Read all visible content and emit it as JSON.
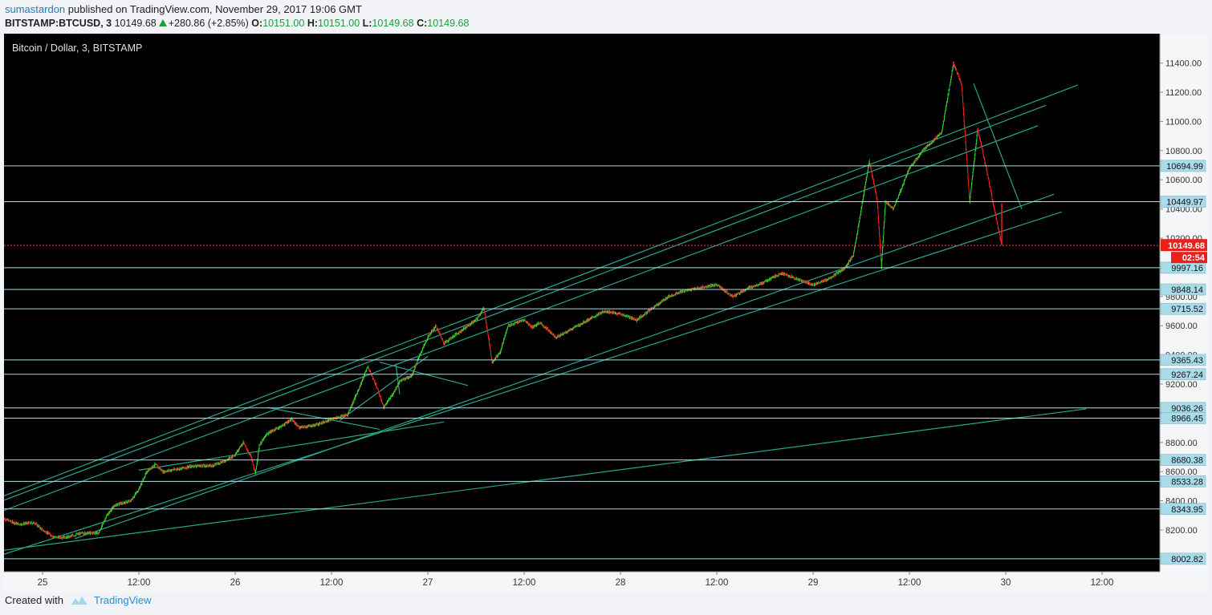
{
  "header": {
    "user": "sumastardon",
    "published": "published on TradingView.com, November 29, 2017 19:06 GMT",
    "symbol": "BITSTAMP:BTCUSD, 3",
    "last": "10149.68",
    "change": "+280.86 (+2.85%)",
    "o_label": "O:",
    "o_value": "10151.00",
    "h_label": "H:",
    "h_value": "10151.00",
    "l_label": "L:",
    "l_value": "10149.68",
    "c_label": "C:",
    "c_value": "10149.68"
  },
  "footer": {
    "created_with": "Created with",
    "brand": "TradingView"
  },
  "chart_data": {
    "type": "candlestick",
    "title": "Bitcoin / Dollar, 3, BITSTAMP",
    "colors": {
      "background": "#000000",
      "up": "#2ecc2e",
      "down": "#e8211a",
      "hline": "#b4dbe6",
      "trendline": "#2aa58a",
      "price_line": "#ff3b30",
      "label_bg": "#a8dcea"
    },
    "y_ticks": [
      8200,
      8400,
      8600,
      8800,
      9000,
      9200,
      9400,
      9600,
      9800,
      10000,
      10200,
      10400,
      10600,
      10800,
      11000,
      11200,
      11400
    ],
    "y_tick_labels": [
      "8200.00",
      "8400.00",
      "8600.00",
      "8800.00",
      "9000.00",
      "9200.00",
      "9400.00",
      "9600.00",
      "9800.00",
      "10000.00",
      "10200.00",
      "10400.00",
      "10600.00",
      "10800.00",
      "11000.00",
      "11200.00",
      "11400.00"
    ],
    "x_ticks": [
      {
        "label": "25",
        "hour": 0
      },
      {
        "label": "12:00",
        "hour": 12
      },
      {
        "label": "26",
        "hour": 24
      },
      {
        "label": "12:00",
        "hour": 36
      },
      {
        "label": "27",
        "hour": 48
      },
      {
        "label": "12:00",
        "hour": 60
      },
      {
        "label": "28",
        "hour": 72
      },
      {
        "label": "12:00",
        "hour": 84
      },
      {
        "label": "29",
        "hour": 96
      },
      {
        "label": "12:00",
        "hour": 108
      },
      {
        "label": "30",
        "hour": 120
      },
      {
        "label": "12:00",
        "hour": 132
      }
    ],
    "horizontal_levels": [
      10694.99,
      10449.97,
      9997.16,
      9848.14,
      9715.52,
      9365.43,
      9267.24,
      9036.26,
      8966.45,
      8680.38,
      8533.28,
      8343.95,
      8002.82
    ],
    "level_labels": [
      "10694.99",
      "10449.97",
      "9997.16",
      "9848.14",
      "9715.52",
      "9365.43",
      "9267.24",
      "9036.26",
      "8966.45",
      "8680.38",
      "8533.28",
      "8343.95",
      "8002.82"
    ],
    "current_price": 10149.68,
    "current_price_label": "10149.68",
    "countdown": "02:54",
    "price_path": [
      [
        -5,
        8280
      ],
      [
        -3,
        8240
      ],
      [
        -1,
        8250
      ],
      [
        0,
        8200
      ],
      [
        1.5,
        8150
      ],
      [
        3,
        8150
      ],
      [
        5,
        8180
      ],
      [
        7,
        8180
      ],
      [
        8,
        8300
      ],
      [
        9,
        8370
      ],
      [
        11,
        8400
      ],
      [
        12,
        8480
      ],
      [
        13,
        8600
      ],
      [
        14,
        8650
      ],
      [
        15,
        8600
      ],
      [
        17,
        8620
      ],
      [
        19,
        8640
      ],
      [
        21,
        8640
      ],
      [
        23,
        8680
      ],
      [
        24,
        8720
      ],
      [
        25,
        8800
      ],
      [
        26,
        8700
      ],
      [
        26.5,
        8580
      ],
      [
        27,
        8780
      ],
      [
        28,
        8860
      ],
      [
        30,
        8920
      ],
      [
        31,
        8960
      ],
      [
        32,
        8900
      ],
      [
        34,
        8920
      ],
      [
        36,
        8960
      ],
      [
        38,
        8990
      ],
      [
        39.5,
        9180
      ],
      [
        40.5,
        9320
      ],
      [
        41.5,
        9200
      ],
      [
        42.5,
        9040
      ],
      [
        43.5,
        9120
      ],
      [
        44.5,
        9220
      ],
      [
        46,
        9260
      ],
      [
        47,
        9400
      ],
      [
        48,
        9520
      ],
      [
        49,
        9600
      ],
      [
        50,
        9480
      ],
      [
        52,
        9560
      ],
      [
        54,
        9640
      ],
      [
        55,
        9720
      ],
      [
        56,
        9350
      ],
      [
        57,
        9420
      ],
      [
        58,
        9600
      ],
      [
        60,
        9640
      ],
      [
        61,
        9590
      ],
      [
        62,
        9620
      ],
      [
        64,
        9520
      ],
      [
        66,
        9580
      ],
      [
        68,
        9640
      ],
      [
        70,
        9700
      ],
      [
        72,
        9680
      ],
      [
        74,
        9640
      ],
      [
        76,
        9720
      ],
      [
        78,
        9800
      ],
      [
        80,
        9840
      ],
      [
        82,
        9860
      ],
      [
        84,
        9880
      ],
      [
        86,
        9800
      ],
      [
        88,
        9860
      ],
      [
        90,
        9900
      ],
      [
        92,
        9960
      ],
      [
        94,
        9920
      ],
      [
        96,
        9880
      ],
      [
        98,
        9920
      ],
      [
        100,
        10000
      ],
      [
        101,
        10080
      ],
      [
        102,
        10400
      ],
      [
        103,
        10730
      ],
      [
        104,
        10450
      ],
      [
        104.5,
        10000
      ],
      [
        105,
        10450
      ],
      [
        106,
        10400
      ],
      [
        108,
        10680
      ],
      [
        110,
        10820
      ],
      [
        112,
        10920
      ],
      [
        113.5,
        11400
      ],
      [
        114.5,
        11250
      ],
      [
        115.5,
        10450
      ],
      [
        116.5,
        10950
      ],
      [
        117.5,
        10700
      ],
      [
        118.5,
        10420
      ],
      [
        119.5,
        10150
      ]
    ],
    "trendlines": [
      [
        [
          -5,
          8430
        ],
        [
          129,
          11250
        ]
      ],
      [
        [
          -5,
          8400
        ],
        [
          125,
          11110
        ]
      ],
      [
        [
          -5,
          8330
        ],
        [
          124,
          10970
        ]
      ],
      [
        [
          -5,
          8030
        ],
        [
          127,
          10380
        ]
      ],
      [
        [
          4,
          8140
        ],
        [
          126,
          10500
        ]
      ],
      [
        [
          -5,
          8060
        ],
        [
          130,
          9030
        ]
      ],
      [
        [
          12,
          8610
        ],
        [
          50,
          8940
        ]
      ],
      [
        [
          28,
          9040
        ],
        [
          42,
          8890
        ]
      ],
      [
        [
          37,
          8950
        ],
        [
          48,
          9390
        ]
      ],
      [
        [
          42,
          9350
        ],
        [
          53,
          9190
        ]
      ],
      [
        [
          44,
          9340
        ],
        [
          44.5,
          9130
        ]
      ],
      [
        [
          116,
          11260
        ],
        [
          122,
          10400
        ]
      ]
    ]
  }
}
